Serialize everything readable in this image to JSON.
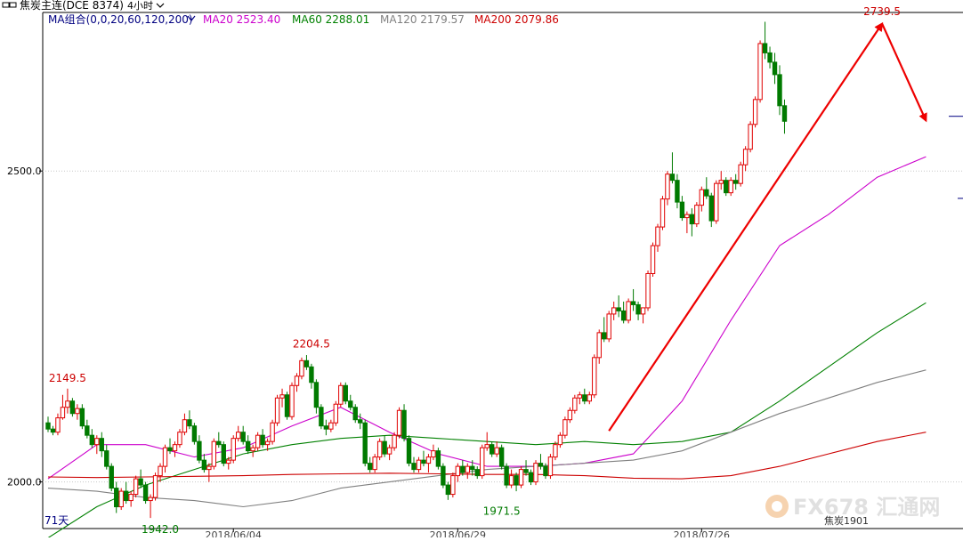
{
  "header": {
    "symbol": "焦炭主连(DCE 8374)",
    "period": "4小时",
    "ma_group": "MA组合(0,0,20,60,120,200)",
    "ma20_label": "MA20 2523.40",
    "ma60_label": "MA60 2288.01",
    "ma120_label": "MA120 2179.57",
    "ma200_label": "MA200 2079.86"
  },
  "colors": {
    "up": "#e00000",
    "down": "#007a00",
    "ma20": "#cc00cc",
    "ma60": "#008000",
    "ma120": "#808080",
    "ma200": "#cc0000",
    "trend": "#ee0000",
    "axis": "#000000",
    "grid": "#c8c8c8",
    "ma_group": "#000080"
  },
  "footer": {
    "day_count": "71天",
    "contract": "焦炭1901",
    "watermark": "FX678 汇通网"
  },
  "chart_data": {
    "type": "candlestick",
    "title": "焦炭主连(DCE 8374) 4小时",
    "y_ticks": [
      2000.0,
      2500.0
    ],
    "y_tick_labels": [
      "2000.0",
      "2500.0"
    ],
    "ylim": [
      1925,
      2755
    ],
    "x_labels": [
      {
        "label": "2018/06/04",
        "index": 38
      },
      {
        "label": "2018/06/29",
        "index": 84
      },
      {
        "label": "2018/07/26",
        "index": 134
      }
    ],
    "annotations": [
      {
        "text": "2149.5",
        "index": 4,
        "value": 2149.5,
        "kind": "high"
      },
      {
        "text": "1942.0",
        "index": 23,
        "value": 1942.0,
        "kind": "low"
      },
      {
        "text": "2204.5",
        "index": 54,
        "value": 2204.5,
        "kind": "high"
      },
      {
        "text": "1971.5",
        "index": 93,
        "value": 1971.5,
        "kind": "low"
      },
      {
        "text": "2739.5",
        "index": 171,
        "value": 2739.5,
        "kind": "high"
      }
    ],
    "trend_lines": [
      {
        "from": {
          "index": 115,
          "value": 2082
        },
        "to": {
          "index": 171,
          "value": 2737
        }
      },
      {
        "from": {
          "index": 171,
          "value": 2737
        },
        "to": {
          "index": 180,
          "value": 2581
        }
      }
    ],
    "guide_line": {
      "value": 2588
    },
    "ohlc": [
      [
        2095,
        2105,
        2080,
        2085
      ],
      [
        2085,
        2090,
        2075,
        2080
      ],
      [
        2080,
        2110,
        2075,
        2103
      ],
      [
        2103,
        2140,
        2100,
        2120
      ],
      [
        2120,
        2150,
        2110,
        2130
      ],
      [
        2130,
        2135,
        2105,
        2110
      ],
      [
        2110,
        2125,
        2100,
        2118
      ],
      [
        2118,
        2125,
        2085,
        2090
      ],
      [
        2090,
        2100,
        2070,
        2075
      ],
      [
        2075,
        2085,
        2055,
        2060
      ],
      [
        2060,
        2075,
        2045,
        2070
      ],
      [
        2070,
        2080,
        2040,
        2050
      ],
      [
        2050,
        2060,
        2020,
        2025
      ],
      [
        2025,
        2030,
        1985,
        1990
      ],
      [
        1990,
        2000,
        1950,
        1960
      ],
      [
        1960,
        1990,
        1955,
        1985
      ],
      [
        1985,
        2000,
        1965,
        1970
      ],
      [
        1970,
        1985,
        1960,
        1980
      ],
      [
        1980,
        2010,
        1975,
        2005
      ],
      [
        2005,
        2020,
        1990,
        1995
      ],
      [
        1995,
        2000,
        1965,
        1970
      ],
      [
        1970,
        1980,
        1942,
        1975
      ],
      [
        1975,
        2015,
        1970,
        2010
      ],
      [
        2010,
        2030,
        2000,
        2025
      ],
      [
        2025,
        2060,
        2015,
        2055
      ],
      [
        2055,
        2070,
        2045,
        2050
      ],
      [
        2050,
        2065,
        2040,
        2060
      ],
      [
        2060,
        2085,
        2055,
        2080
      ],
      [
        2080,
        2110,
        2075,
        2100
      ],
      [
        2100,
        2115,
        2085,
        2090
      ],
      [
        2090,
        2095,
        2060,
        2065
      ],
      [
        2065,
        2075,
        2030,
        2035
      ],
      [
        2035,
        2045,
        2015,
        2020
      ],
      [
        2020,
        2030,
        2000,
        2025
      ],
      [
        2025,
        2070,
        2020,
        2065
      ],
      [
        2065,
        2080,
        2055,
        2060
      ],
      [
        2060,
        2065,
        2025,
        2030
      ],
      [
        2030,
        2040,
        2020,
        2035
      ],
      [
        2035,
        2075,
        2030,
        2070
      ],
      [
        2070,
        2090,
        2065,
        2080
      ],
      [
        2080,
        2090,
        2060,
        2065
      ],
      [
        2065,
        2075,
        2045,
        2050
      ],
      [
        2050,
        2060,
        2040,
        2055
      ],
      [
        2055,
        2080,
        2050,
        2075
      ],
      [
        2075,
        2085,
        2055,
        2060
      ],
      [
        2060,
        2070,
        2050,
        2065
      ],
      [
        2065,
        2100,
        2060,
        2095
      ],
      [
        2095,
        2140,
        2090,
        2135
      ],
      [
        2135,
        2150,
        2120,
        2140
      ],
      [
        2140,
        2145,
        2100,
        2105
      ],
      [
        2105,
        2160,
        2100,
        2155
      ],
      [
        2155,
        2175,
        2145,
        2170
      ],
      [
        2170,
        2200,
        2165,
        2195
      ],
      [
        2195,
        2204,
        2180,
        2185
      ],
      [
        2185,
        2190,
        2150,
        2160
      ],
      [
        2160,
        2165,
        2110,
        2120
      ],
      [
        2120,
        2125,
        2085,
        2090
      ],
      [
        2090,
        2100,
        2075,
        2085
      ],
      [
        2085,
        2100,
        2080,
        2095
      ],
      [
        2095,
        2130,
        2090,
        2125
      ],
      [
        2125,
        2160,
        2120,
        2155
      ],
      [
        2155,
        2160,
        2125,
        2130
      ],
      [
        2130,
        2140,
        2115,
        2120
      ],
      [
        2120,
        2125,
        2095,
        2100
      ],
      [
        2100,
        2110,
        2085,
        2095
      ],
      [
        2095,
        2100,
        2025,
        2030
      ],
      [
        2030,
        2040,
        2015,
        2020
      ],
      [
        2020,
        2045,
        2015,
        2040
      ],
      [
        2040,
        2070,
        2035,
        2065
      ],
      [
        2065,
        2075,
        2040,
        2045
      ],
      [
        2045,
        2060,
        2035,
        2055
      ],
      [
        2055,
        2080,
        2050,
        2075
      ],
      [
        2075,
        2120,
        2070,
        2115
      ],
      [
        2115,
        2125,
        2065,
        2070
      ],
      [
        2070,
        2075,
        2025,
        2030
      ],
      [
        2030,
        2040,
        2015,
        2020
      ],
      [
        2020,
        2040,
        2015,
        2035
      ],
      [
        2035,
        2050,
        2025,
        2030
      ],
      [
        2030,
        2045,
        2015,
        2040
      ],
      [
        2040,
        2060,
        2035,
        2050
      ],
      [
        2050,
        2055,
        2020,
        2025
      ],
      [
        2025,
        2030,
        1990,
        1995
      ],
      [
        1995,
        2000,
        1971,
        1980
      ],
      [
        1980,
        2015,
        1975,
        2010
      ],
      [
        2010,
        2030,
        2000,
        2025
      ],
      [
        2025,
        2035,
        2010,
        2015
      ],
      [
        2015,
        2030,
        2005,
        2025
      ],
      [
        2025,
        2035,
        2010,
        2020
      ],
      [
        2020,
        2025,
        2005,
        2010
      ],
      [
        2010,
        2060,
        2005,
        2055
      ],
      [
        2055,
        2080,
        2050,
        2060
      ],
      [
        2060,
        2065,
        2040,
        2045
      ],
      [
        2045,
        2065,
        2040,
        2055
      ],
      [
        2055,
        2060,
        2020,
        2025
      ],
      [
        2025,
        2030,
        1990,
        1995
      ],
      [
        1995,
        2020,
        1990,
        2010
      ],
      [
        2010,
        2015,
        1985,
        1995
      ],
      [
        1995,
        2025,
        1990,
        2020
      ],
      [
        2020,
        2035,
        2010,
        2015
      ],
      [
        2015,
        2020,
        1995,
        2000
      ],
      [
        2000,
        2035,
        1995,
        2030
      ],
      [
        2030,
        2045,
        2020,
        2025
      ],
      [
        2025,
        2030,
        2005,
        2010
      ],
      [
        2010,
        2045,
        2005,
        2040
      ],
      [
        2040,
        2065,
        2035,
        2060
      ],
      [
        2060,
        2080,
        2055,
        2075
      ],
      [
        2075,
        2105,
        2070,
        2100
      ],
      [
        2100,
        2120,
        2095,
        2115
      ],
      [
        2115,
        2140,
        2110,
        2135
      ],
      [
        2135,
        2145,
        2125,
        2140
      ],
      [
        2140,
        2150,
        2125,
        2130
      ],
      [
        2130,
        2145,
        2125,
        2140
      ],
      [
        2140,
        2205,
        2135,
        2200
      ],
      [
        2200,
        2245,
        2190,
        2240
      ],
      [
        2240,
        2265,
        2225,
        2230
      ],
      [
        2230,
        2275,
        2225,
        2270
      ],
      [
        2270,
        2290,
        2260,
        2280
      ],
      [
        2280,
        2300,
        2265,
        2275
      ],
      [
        2275,
        2290,
        2255,
        2260
      ],
      [
        2260,
        2295,
        2255,
        2290
      ],
      [
        2290,
        2310,
        2275,
        2285
      ],
      [
        2285,
        2290,
        2260,
        2270
      ],
      [
        2270,
        2275,
        2255,
        2280
      ],
      [
        2280,
        2340,
        2275,
        2335
      ],
      [
        2335,
        2385,
        2330,
        2380
      ],
      [
        2380,
        2415,
        2370,
        2410
      ],
      [
        2410,
        2460,
        2405,
        2455
      ],
      [
        2455,
        2500,
        2445,
        2495
      ],
      [
        2495,
        2530,
        2480,
        2485
      ],
      [
        2485,
        2495,
        2440,
        2450
      ],
      [
        2450,
        2460,
        2420,
        2425
      ],
      [
        2425,
        2435,
        2400,
        2430
      ],
      [
        2430,
        2440,
        2395,
        2415
      ],
      [
        2415,
        2450,
        2410,
        2445
      ],
      [
        2445,
        2475,
        2435,
        2470
      ],
      [
        2470,
        2490,
        2455,
        2460
      ],
      [
        2460,
        2465,
        2410,
        2420
      ],
      [
        2420,
        2485,
        2415,
        2480
      ],
      [
        2480,
        2500,
        2470,
        2485
      ],
      [
        2485,
        2490,
        2460,
        2465
      ],
      [
        2465,
        2490,
        2460,
        2485
      ],
      [
        2485,
        2495,
        2470,
        2480
      ],
      [
        2480,
        2515,
        2475,
        2510
      ],
      [
        2510,
        2540,
        2500,
        2535
      ],
      [
        2535,
        2580,
        2530,
        2575
      ],
      [
        2575,
        2620,
        2570,
        2615
      ],
      [
        2615,
        2710,
        2610,
        2705
      ],
      [
        2705,
        2740,
        2680,
        2690
      ],
      [
        2690,
        2700,
        2665,
        2675
      ],
      [
        2675,
        2690,
        2640,
        2655
      ],
      [
        2655,
        2670,
        2590,
        2605
      ],
      [
        2605,
        2615,
        2560,
        2580
      ]
    ],
    "series": [
      {
        "name": "MA20",
        "points": [
          [
            0,
            2005
          ],
          [
            10,
            2060
          ],
          [
            20,
            2060
          ],
          [
            30,
            2040
          ],
          [
            40,
            2055
          ],
          [
            50,
            2090
          ],
          [
            60,
            2120
          ],
          [
            70,
            2080
          ],
          [
            80,
            2045
          ],
          [
            90,
            2025
          ],
          [
            100,
            2025
          ],
          [
            110,
            2030
          ],
          [
            120,
            2045
          ],
          [
            130,
            2130
          ],
          [
            140,
            2260
          ],
          [
            150,
            2380
          ],
          [
            160,
            2430
          ],
          [
            170,
            2490
          ],
          [
            180,
            2523
          ]
        ]
      },
      {
        "name": "MA60",
        "points": [
          [
            0,
            1910
          ],
          [
            10,
            1960
          ],
          [
            20,
            1995
          ],
          [
            30,
            2020
          ],
          [
            40,
            2045
          ],
          [
            50,
            2060
          ],
          [
            60,
            2070
          ],
          [
            70,
            2075
          ],
          [
            80,
            2070
          ],
          [
            90,
            2065
          ],
          [
            100,
            2060
          ],
          [
            110,
            2065
          ],
          [
            120,
            2060
          ],
          [
            130,
            2065
          ],
          [
            140,
            2080
          ],
          [
            150,
            2130
          ],
          [
            160,
            2185
          ],
          [
            170,
            2240
          ],
          [
            180,
            2288
          ]
        ]
      },
      {
        "name": "MA120",
        "points": [
          [
            0,
            1990
          ],
          [
            10,
            1985
          ],
          [
            20,
            1975
          ],
          [
            30,
            1970
          ],
          [
            40,
            1960
          ],
          [
            50,
            1970
          ],
          [
            60,
            1990
          ],
          [
            70,
            2000
          ],
          [
            80,
            2010
          ],
          [
            90,
            2020
          ],
          [
            100,
            2025
          ],
          [
            110,
            2030
          ],
          [
            120,
            2035
          ],
          [
            130,
            2050
          ],
          [
            140,
            2080
          ],
          [
            150,
            2110
          ],
          [
            160,
            2135
          ],
          [
            170,
            2160
          ],
          [
            180,
            2180
          ]
        ]
      },
      {
        "name": "MA200",
        "points": [
          [
            0,
            2008
          ],
          [
            10,
            2007
          ],
          [
            20,
            2008
          ],
          [
            30,
            2009
          ],
          [
            40,
            2010
          ],
          [
            50,
            2012
          ],
          [
            60,
            2013
          ],
          [
            70,
            2014
          ],
          [
            80,
            2013
          ],
          [
            90,
            2012
          ],
          [
            100,
            2012
          ],
          [
            110,
            2010
          ],
          [
            120,
            2006
          ],
          [
            130,
            2005
          ],
          [
            140,
            2010
          ],
          [
            150,
            2025
          ],
          [
            160,
            2045
          ],
          [
            170,
            2065
          ],
          [
            180,
            2080
          ]
        ]
      }
    ]
  }
}
